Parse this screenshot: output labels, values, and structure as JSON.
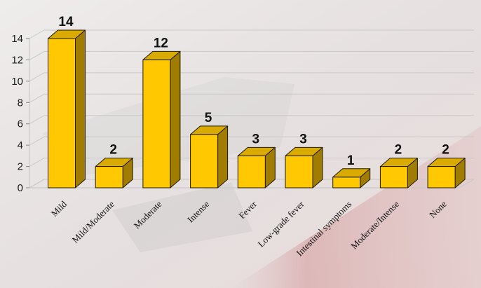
{
  "chart_data": {
    "type": "bar",
    "title": "",
    "xlabel": "",
    "ylabel": "",
    "categories": [
      "Mild",
      "Mild/Moderate",
      "Moderate",
      "Intense",
      "Fever",
      "Low-grade fever",
      "Intestinal symptoms",
      "Moderate/Intense",
      "None"
    ],
    "values": [
      14,
      2,
      12,
      5,
      3,
      3,
      1,
      2,
      2
    ],
    "data_labels": [
      "14",
      "2",
      "12",
      "5",
      "3",
      "3",
      "1",
      "2",
      "2"
    ],
    "ylim": [
      0,
      14
    ],
    "yticks": [
      0,
      2,
      4,
      6,
      8,
      10,
      12,
      14
    ],
    "ytick_labels": [
      "0",
      "2",
      "4",
      "6",
      "8",
      "10",
      "12",
      "14"
    ],
    "grid": true,
    "legend": "none",
    "style": "3d-bar",
    "colors": {
      "bar_front": "#ffc800",
      "bar_side": "#a07d00",
      "bar_top": "#d9aa00",
      "bar_stroke": "#1f1a00",
      "grid": "#c9c9c9"
    }
  }
}
